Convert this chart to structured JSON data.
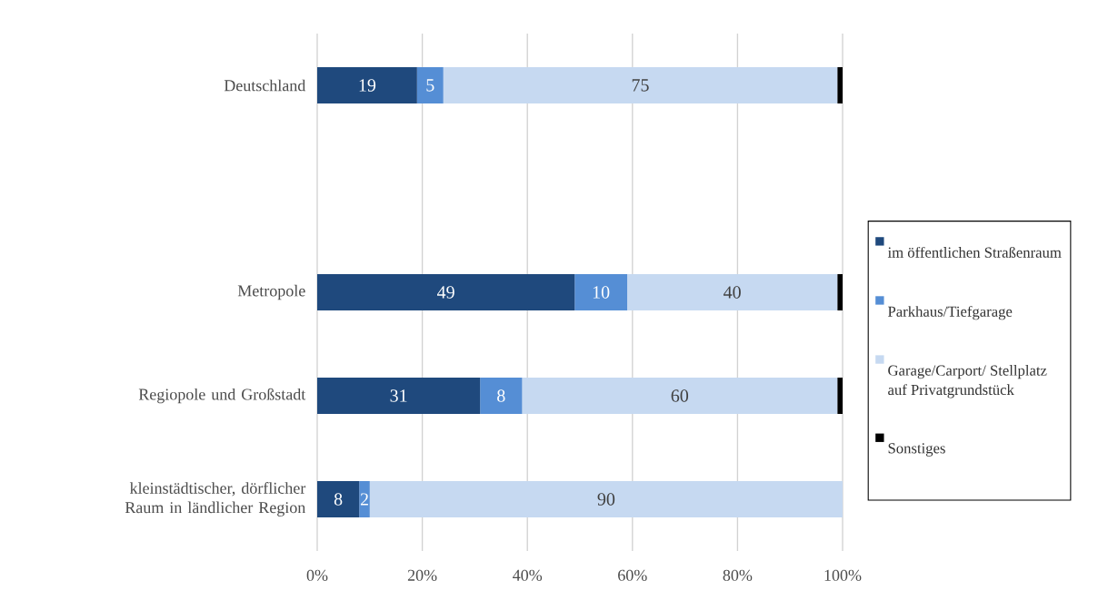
{
  "chart_data": {
    "type": "bar",
    "orientation": "horizontal",
    "stacked": true,
    "categories": [
      "Deutschland",
      null,
      "Metropole",
      "Regiopole und Großstadt",
      "kleinstädtischer, dörflicher Raum in ländlicher Region"
    ],
    "series": [
      {
        "name": "im öffentlichen Straßenraum",
        "color": "#1f497d",
        "values": [
          19,
          null,
          49,
          31,
          8
        ],
        "value_labels": [
          "19",
          null,
          "49",
          "31",
          "8"
        ]
      },
      {
        "name": "Parkhaus/Tiefgarage",
        "color": "#558ed5",
        "values": [
          5,
          null,
          10,
          8,
          2
        ],
        "value_labels": [
          "5",
          null,
          "10",
          "8",
          "2"
        ]
      },
      {
        "name": "Garage/Carport/ Stellplatz auf Privatgrundstück",
        "color": "#c6d9f1",
        "values": [
          75,
          null,
          40,
          60,
          90
        ],
        "value_labels": [
          "75",
          null,
          "40",
          "60",
          "90"
        ]
      },
      {
        "name": "Sonstiges",
        "color": "#000000",
        "values": [
          1,
          null,
          1,
          1,
          0
        ]
      }
    ],
    "xlim": [
      0,
      100
    ],
    "xticks": [
      {
        "value": 0,
        "label": "0%"
      },
      {
        "value": 20,
        "label": "20%"
      },
      {
        "value": 40,
        "label": "40%"
      },
      {
        "value": 60,
        "label": "60%"
      },
      {
        "value": 80,
        "label": "80%"
      },
      {
        "value": 100,
        "label": "100%"
      }
    ],
    "grid": "x",
    "legend": "right"
  }
}
